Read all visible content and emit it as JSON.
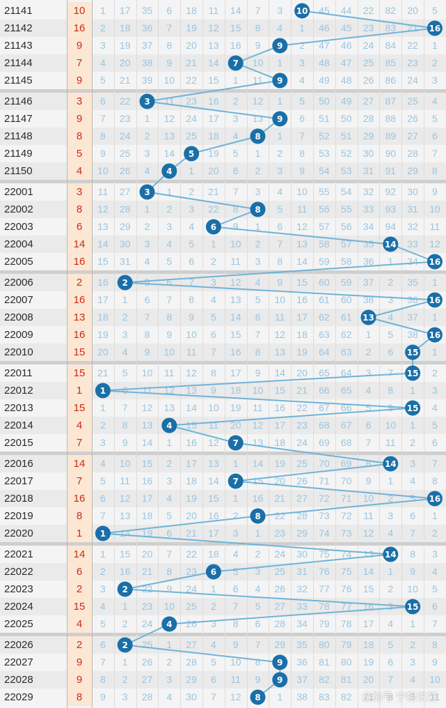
{
  "chart_data": {
    "type": "table",
    "position_range": [
      1,
      16
    ],
    "colors": {
      "line": "#6fb3d8",
      "ball": "#1a6fa8",
      "sum": "#cc2a1a",
      "numbers": "#9ac4e0"
    },
    "rows": [
      {
        "issue": "21141",
        "value": 10,
        "cells": [
          "1",
          "17",
          "35",
          "6",
          "18",
          "11",
          "14",
          "7",
          "3",
          "",
          "45",
          "44",
          "22",
          "82",
          "20",
          "5"
        ]
      },
      {
        "issue": "21142",
        "value": 16,
        "cells": [
          "2",
          "18",
          "36",
          "7",
          "19",
          "12",
          "15",
          "8",
          "4",
          "1",
          "46",
          "45",
          "23",
          "83",
          "21",
          ""
        ]
      },
      {
        "issue": "21143",
        "value": 9,
        "cells": [
          "3",
          "19",
          "37",
          "8",
          "20",
          "13",
          "16",
          "9",
          "",
          "2",
          "47",
          "46",
          "24",
          "84",
          "22",
          "1"
        ]
      },
      {
        "issue": "21144",
        "value": 7,
        "cells": [
          "4",
          "20",
          "38",
          "9",
          "21",
          "14",
          "",
          "10",
          "1",
          "3",
          "48",
          "47",
          "25",
          "85",
          "23",
          "2"
        ]
      },
      {
        "issue": "21145",
        "value": 9,
        "cells": [
          "5",
          "21",
          "39",
          "10",
          "22",
          "15",
          "1",
          "11",
          "",
          "4",
          "49",
          "48",
          "26",
          "86",
          "24",
          "3"
        ]
      },
      {
        "issue": "21146",
        "value": 3,
        "cells": [
          "6",
          "22",
          "",
          "11",
          "23",
          "16",
          "2",
          "12",
          "1",
          "5",
          "50",
          "49",
          "27",
          "87",
          "25",
          "4"
        ]
      },
      {
        "issue": "21147",
        "value": 9,
        "cells": [
          "7",
          "23",
          "1",
          "12",
          "24",
          "17",
          "3",
          "13",
          "",
          "6",
          "51",
          "50",
          "28",
          "88",
          "26",
          "5"
        ]
      },
      {
        "issue": "21148",
        "value": 8,
        "cells": [
          "8",
          "24",
          "2",
          "13",
          "25",
          "18",
          "4",
          "",
          "1",
          "7",
          "52",
          "51",
          "29",
          "89",
          "27",
          "6"
        ]
      },
      {
        "issue": "21149",
        "value": 5,
        "cells": [
          "9",
          "25",
          "3",
          "14",
          "",
          "19",
          "5",
          "1",
          "2",
          "8",
          "53",
          "52",
          "30",
          "90",
          "28",
          "7"
        ]
      },
      {
        "issue": "21150",
        "value": 4,
        "cells": [
          "10",
          "26",
          "4",
          "",
          "1",
          "20",
          "6",
          "2",
          "3",
          "9",
          "54",
          "53",
          "31",
          "91",
          "29",
          "8"
        ]
      },
      {
        "issue": "22001",
        "value": 3,
        "cells": [
          "11",
          "27",
          "",
          "1",
          "2",
          "21",
          "7",
          "3",
          "4",
          "10",
          "55",
          "54",
          "32",
          "92",
          "30",
          "9"
        ]
      },
      {
        "issue": "22002",
        "value": 8,
        "cells": [
          "12",
          "28",
          "1",
          "2",
          "3",
          "22",
          "8",
          "",
          "5",
          "11",
          "56",
          "55",
          "33",
          "93",
          "31",
          "10"
        ]
      },
      {
        "issue": "22003",
        "value": 6,
        "cells": [
          "13",
          "29",
          "2",
          "3",
          "4",
          "",
          "9",
          "1",
          "6",
          "12",
          "57",
          "56",
          "34",
          "94",
          "32",
          "11"
        ]
      },
      {
        "issue": "22004",
        "value": 14,
        "cells": [
          "14",
          "30",
          "3",
          "4",
          "5",
          "1",
          "10",
          "2",
          "7",
          "13",
          "58",
          "57",
          "35",
          "",
          "33",
          "12"
        ]
      },
      {
        "issue": "22005",
        "value": 16,
        "cells": [
          "15",
          "31",
          "4",
          "5",
          "6",
          "2",
          "11",
          "3",
          "8",
          "14",
          "59",
          "58",
          "36",
          "1",
          "34",
          ""
        ]
      },
      {
        "issue": "22006",
        "value": 2,
        "cells": [
          "16",
          "",
          "5",
          "6",
          "7",
          "3",
          "12",
          "4",
          "9",
          "15",
          "60",
          "59",
          "37",
          "2",
          "35",
          "1"
        ]
      },
      {
        "issue": "22007",
        "value": 16,
        "cells": [
          "17",
          "1",
          "6",
          "7",
          "8",
          "4",
          "13",
          "5",
          "10",
          "16",
          "61",
          "60",
          "38",
          "3",
          "36",
          ""
        ]
      },
      {
        "issue": "22008",
        "value": 13,
        "cells": [
          "18",
          "2",
          "7",
          "8",
          "9",
          "5",
          "14",
          "6",
          "11",
          "17",
          "62",
          "61",
          "",
          "4",
          "37",
          "1"
        ]
      },
      {
        "issue": "22009",
        "value": 16,
        "cells": [
          "19",
          "3",
          "8",
          "9",
          "10",
          "6",
          "15",
          "7",
          "12",
          "18",
          "63",
          "62",
          "1",
          "5",
          "38",
          ""
        ]
      },
      {
        "issue": "22010",
        "value": 15,
        "cells": [
          "20",
          "4",
          "9",
          "10",
          "11",
          "7",
          "16",
          "8",
          "13",
          "19",
          "64",
          "63",
          "2",
          "6",
          "",
          "1"
        ]
      },
      {
        "issue": "22011",
        "value": 15,
        "cells": [
          "21",
          "5",
          "10",
          "11",
          "12",
          "8",
          "17",
          "9",
          "14",
          "20",
          "65",
          "64",
          "3",
          "7",
          "",
          "2"
        ]
      },
      {
        "issue": "22012",
        "value": 1,
        "cells": [
          "",
          "6",
          "11",
          "12",
          "13",
          "9",
          "18",
          "10",
          "15",
          "21",
          "66",
          "65",
          "4",
          "8",
          "1",
          "3"
        ]
      },
      {
        "issue": "22013",
        "value": 15,
        "cells": [
          "1",
          "7",
          "12",
          "13",
          "14",
          "10",
          "19",
          "11",
          "16",
          "22",
          "67",
          "66",
          "5",
          "9",
          "",
          "4"
        ]
      },
      {
        "issue": "22014",
        "value": 4,
        "cells": [
          "2",
          "8",
          "13",
          "",
          "15",
          "11",
          "20",
          "12",
          "17",
          "23",
          "68",
          "67",
          "6",
          "10",
          "1",
          "5"
        ]
      },
      {
        "issue": "22015",
        "value": 7,
        "cells": [
          "3",
          "9",
          "14",
          "1",
          "16",
          "12",
          "",
          "13",
          "18",
          "24",
          "69",
          "68",
          "7",
          "11",
          "2",
          "6"
        ]
      },
      {
        "issue": "22016",
        "value": 14,
        "cells": [
          "4",
          "10",
          "15",
          "2",
          "17",
          "13",
          "1",
          "14",
          "19",
          "25",
          "70",
          "69",
          "8",
          "",
          "3",
          "7"
        ]
      },
      {
        "issue": "22017",
        "value": 7,
        "cells": [
          "5",
          "11",
          "16",
          "3",
          "18",
          "14",
          "",
          "15",
          "20",
          "26",
          "71",
          "70",
          "9",
          "1",
          "4",
          "8"
        ]
      },
      {
        "issue": "22018",
        "value": 16,
        "cells": [
          "6",
          "12",
          "17",
          "4",
          "19",
          "15",
          "1",
          "16",
          "21",
          "27",
          "72",
          "71",
          "10",
          "2",
          "5",
          ""
        ]
      },
      {
        "issue": "22019",
        "value": 8,
        "cells": [
          "7",
          "13",
          "18",
          "5",
          "20",
          "16",
          "2",
          "",
          "22",
          "28",
          "73",
          "72",
          "11",
          "3",
          "6",
          "1"
        ]
      },
      {
        "issue": "22020",
        "value": 1,
        "cells": [
          "",
          "14",
          "19",
          "6",
          "21",
          "17",
          "3",
          "1",
          "23",
          "29",
          "74",
          "73",
          "12",
          "4",
          "7",
          "2"
        ]
      },
      {
        "issue": "22021",
        "value": 14,
        "cells": [
          "1",
          "15",
          "20",
          "7",
          "22",
          "18",
          "4",
          "2",
          "24",
          "30",
          "75",
          "74",
          "13",
          "",
          "8",
          "3"
        ]
      },
      {
        "issue": "22022",
        "value": 6,
        "cells": [
          "2",
          "16",
          "21",
          "8",
          "23",
          "",
          "5",
          "3",
          "25",
          "31",
          "76",
          "75",
          "14",
          "1",
          "9",
          "4"
        ]
      },
      {
        "issue": "22023",
        "value": 2,
        "cells": [
          "3",
          "",
          "22",
          "9",
          "24",
          "1",
          "6",
          "4",
          "26",
          "32",
          "77",
          "76",
          "15",
          "2",
          "10",
          "5"
        ]
      },
      {
        "issue": "22024",
        "value": 15,
        "cells": [
          "4",
          "1",
          "23",
          "10",
          "25",
          "2",
          "7",
          "5",
          "27",
          "33",
          "78",
          "77",
          "16",
          "3",
          "",
          "6"
        ]
      },
      {
        "issue": "22025",
        "value": 4,
        "cells": [
          "5",
          "2",
          "24",
          "",
          "26",
          "3",
          "8",
          "6",
          "28",
          "34",
          "79",
          "78",
          "17",
          "4",
          "1",
          "7"
        ]
      },
      {
        "issue": "22026",
        "value": 2,
        "cells": [
          "6",
          "",
          "25",
          "1",
          "27",
          "4",
          "9",
          "7",
          "29",
          "35",
          "80",
          "79",
          "18",
          "5",
          "2",
          "8"
        ]
      },
      {
        "issue": "22027",
        "value": 9,
        "cells": [
          "7",
          "1",
          "26",
          "2",
          "28",
          "5",
          "10",
          "8",
          "",
          "36",
          "81",
          "80",
          "19",
          "6",
          "3",
          "9"
        ]
      },
      {
        "issue": "22028",
        "value": 9,
        "cells": [
          "8",
          "2",
          "27",
          "3",
          "29",
          "6",
          "11",
          "9",
          "",
          "37",
          "82",
          "81",
          "20",
          "7",
          "4",
          "10"
        ]
      },
      {
        "issue": "22029",
        "value": 8,
        "cells": [
          "9",
          "3",
          "28",
          "4",
          "30",
          "7",
          "12",
          "",
          "1",
          "38",
          "83",
          "82",
          "21",
          "8",
          "5",
          "11"
        ]
      }
    ]
  },
  "watermark": "企鹅号 宁狼说彩"
}
